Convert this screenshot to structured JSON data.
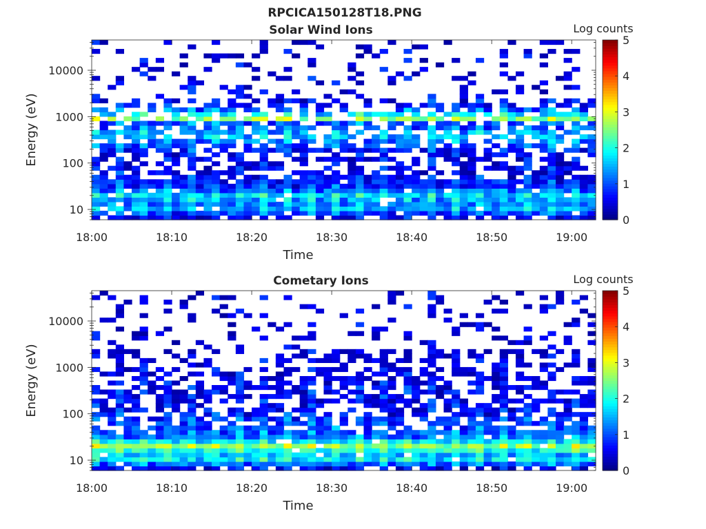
{
  "figure": {
    "title": "RPCICA150128T18.PNG"
  },
  "chart_data": [
    {
      "type": "heatmap",
      "title": "Solar Wind Ions",
      "xlabel": "Time",
      "ylabel": "Energy (eV)",
      "colorbar_label": "Log counts",
      "xticks": [
        "18:00",
        "18:10",
        "18:20",
        "18:30",
        "18:40",
        "18:50",
        "19:00"
      ],
      "yticks": [
        "10",
        "100",
        "1000",
        "10000"
      ],
      "colorbar_ticks": [
        "0",
        "1",
        "2",
        "3",
        "4",
        "5"
      ],
      "x_range": [
        "18:00",
        "19:03"
      ],
      "y_range_eV": [
        6,
        45000
      ],
      "y_scale": "log",
      "color_range": [
        0,
        5
      ],
      "colormap": "jet",
      "profile": {
        "energy_eV": [
          7,
          10,
          14,
          20,
          30,
          60,
          100,
          150,
          250,
          400,
          700,
          900,
          1300,
          1800,
          3000,
          8000,
          20000
        ],
        "log_counts_typical": [
          0.4,
          1.5,
          1.2,
          1.7,
          0.8,
          0.5,
          0.4,
          0.4,
          1.0,
          1.6,
          0.8,
          2.6,
          1.2,
          0.6,
          0.3,
          0.3,
          0.2
        ]
      }
    },
    {
      "type": "heatmap",
      "title": "Cometary Ions",
      "xlabel": "Time",
      "ylabel": "Energy (eV)",
      "colorbar_label": "Log counts",
      "xticks": [
        "18:00",
        "18:10",
        "18:20",
        "18:30",
        "18:40",
        "18:50",
        "19:00"
      ],
      "yticks": [
        "10",
        "100",
        "1000",
        "10000"
      ],
      "colorbar_ticks": [
        "0",
        "1",
        "2",
        "3",
        "4",
        "5"
      ],
      "x_range": [
        "18:00",
        "19:03"
      ],
      "y_range_eV": [
        6,
        45000
      ],
      "y_scale": "log",
      "color_range": [
        0,
        5
      ],
      "colormap": "jet",
      "profile": {
        "energy_eV": [
          7,
          10,
          14,
          20,
          30,
          45,
          60,
          80,
          100,
          150,
          200,
          300,
          500,
          800,
          1500,
          3000,
          5000,
          12000
        ],
        "log_counts_typical": [
          0.4,
          1.8,
          1.5,
          2.6,
          1.2,
          1.0,
          0.9,
          0.8,
          0.7,
          0.5,
          0.5,
          0.5,
          0.4,
          0.3,
          0.3,
          0.2,
          0.2,
          0.2
        ]
      }
    }
  ]
}
